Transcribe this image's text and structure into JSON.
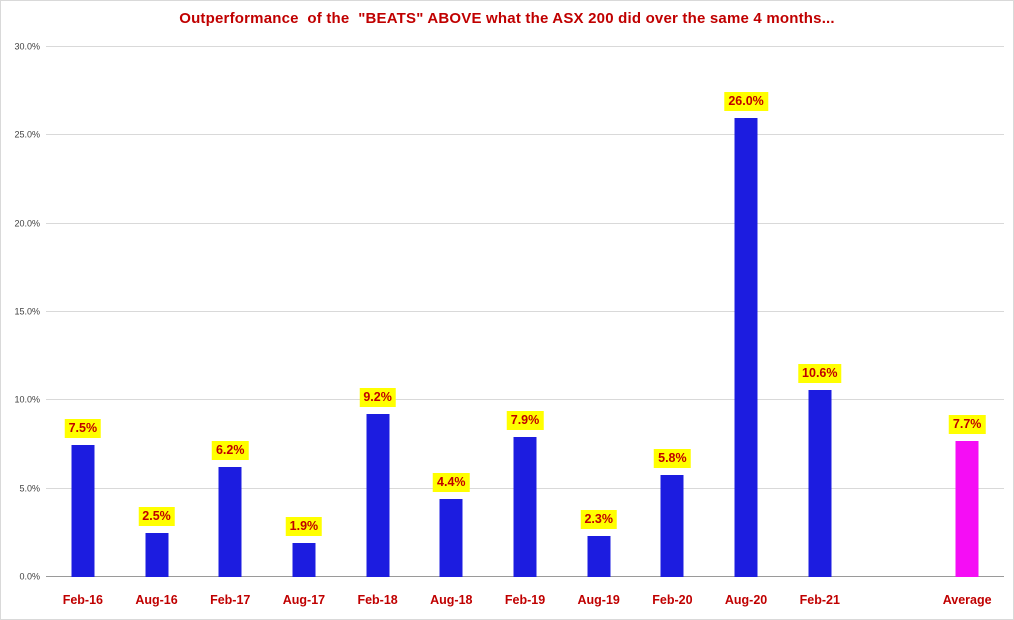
{
  "chart_data": {
    "type": "bar",
    "title": "Outperformance  of the  \"BEATS\" ABOVE what the ASX 200 did over the same 4 months...",
    "categories": [
      "Feb-16",
      "Aug-16",
      "Feb-17",
      "Aug-17",
      "Feb-18",
      "Aug-18",
      "Feb-19",
      "Aug-19",
      "Feb-20",
      "Aug-20",
      "Feb-21",
      "Average"
    ],
    "values": [
      7.5,
      2.5,
      6.2,
      1.9,
      9.2,
      4.4,
      7.9,
      2.3,
      5.8,
      26.0,
      10.6,
      7.7
    ],
    "labels": [
      "7.5%",
      "2.5%",
      "6.2%",
      "1.9%",
      "9.2%",
      "4.4%",
      "7.9%",
      "2.3%",
      "5.8%",
      "26.0%",
      "10.6%",
      "7.7%"
    ],
    "xlabel": "",
    "ylabel": "",
    "ylim": [
      0,
      30
    ],
    "yticks": [
      "0.0%",
      "5.0%",
      "10.0%",
      "15.0%",
      "20.0%",
      "25.0%",
      "30.0%"
    ],
    "grid": true,
    "legend": "none",
    "gap_before_average": true,
    "colors": {
      "bar_default": "#1C1CE0",
      "bar_average": "#F50DF5",
      "label_bg": "#FFFF00",
      "label_text": "#C00000",
      "axis_text": "#C00000",
      "gridline": "#d9d9d9"
    }
  }
}
